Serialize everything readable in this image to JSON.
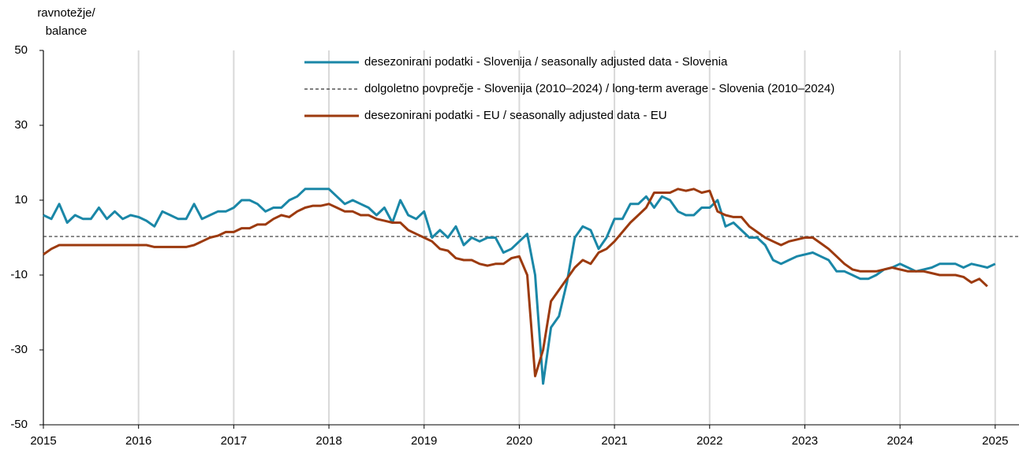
{
  "chart_data": {
    "type": "line",
    "ylabel": [
      "ravnotežje/",
      "balance"
    ],
    "x": [
      "2015-01",
      "2015-02",
      "2015-03",
      "2015-04",
      "2015-05",
      "2015-06",
      "2015-07",
      "2015-08",
      "2015-09",
      "2015-10",
      "2015-11",
      "2015-12",
      "2016-01",
      "2016-02",
      "2016-03",
      "2016-04",
      "2016-05",
      "2016-06",
      "2016-07",
      "2016-08",
      "2016-09",
      "2016-10",
      "2016-11",
      "2016-12",
      "2017-01",
      "2017-02",
      "2017-03",
      "2017-04",
      "2017-05",
      "2017-06",
      "2017-07",
      "2017-08",
      "2017-09",
      "2017-10",
      "2017-11",
      "2017-12",
      "2018-01",
      "2018-02",
      "2018-03",
      "2018-04",
      "2018-05",
      "2018-06",
      "2018-07",
      "2018-08",
      "2018-09",
      "2018-10",
      "2018-11",
      "2018-12",
      "2019-01",
      "2019-02",
      "2019-03",
      "2019-04",
      "2019-05",
      "2019-06",
      "2019-07",
      "2019-08",
      "2019-09",
      "2019-10",
      "2019-11",
      "2019-12",
      "2020-01",
      "2020-02",
      "2020-03",
      "2020-04",
      "2020-05",
      "2020-06",
      "2020-07",
      "2020-08",
      "2020-09",
      "2020-10",
      "2020-11",
      "2020-12",
      "2021-01",
      "2021-02",
      "2021-03",
      "2021-04",
      "2021-05",
      "2021-06",
      "2021-07",
      "2021-08",
      "2021-09",
      "2021-10",
      "2021-11",
      "2021-12",
      "2022-01",
      "2022-02",
      "2022-03",
      "2022-04",
      "2022-05",
      "2022-06",
      "2022-07",
      "2022-08",
      "2022-09",
      "2022-10",
      "2022-11",
      "2022-12",
      "2023-01",
      "2023-02",
      "2023-03",
      "2023-04",
      "2023-05",
      "2023-06",
      "2023-07",
      "2023-08",
      "2023-09",
      "2023-10",
      "2023-11",
      "2023-12",
      "2024-01",
      "2024-02",
      "2024-03",
      "2024-04",
      "2024-05",
      "2024-06",
      "2024-07",
      "2024-08",
      "2024-09",
      "2024-10",
      "2024-11",
      "2024-12",
      "2025-01"
    ],
    "series": [
      {
        "name": "desezonirani podatki - Slovenija / seasonally adjusted data - Slovenia",
        "color": "#1a87a7",
        "values": [
          6,
          5,
          9,
          4,
          6,
          5,
          5,
          8,
          5,
          7,
          5,
          6,
          5.5,
          4.5,
          3,
          7,
          6,
          5,
          5,
          9,
          5,
          6,
          7,
          7,
          8,
          10,
          10,
          9,
          7,
          8,
          8,
          10,
          11,
          13,
          13,
          13,
          13,
          11,
          9,
          10,
          9,
          8,
          6,
          8,
          4,
          10,
          6,
          5,
          7,
          0,
          2,
          0,
          3,
          -2,
          0,
          -1,
          0,
          0,
          -4,
          -3,
          -1,
          1,
          -10,
          -39,
          -24,
          -21,
          -12,
          0,
          3,
          2,
          -3,
          0,
          5,
          5,
          9,
          9,
          11,
          8,
          11,
          10,
          7,
          6,
          6,
          8,
          8,
          10,
          3,
          4,
          2,
          0,
          0,
          -2,
          -6,
          -7,
          -6,
          -5,
          -4.5,
          -4,
          -5,
          -6,
          -9,
          -9,
          -10,
          -11,
          -11,
          -10,
          -8.5,
          -8,
          -7,
          -8,
          -9,
          -8.5,
          -8,
          -7,
          -7,
          -7,
          -8,
          -7,
          -7.5,
          -8,
          -7
        ]
      },
      {
        "name": "desezonirani podatki - EU / seasonally adjusted data - EU",
        "color": "#9c3a0e",
        "values": [
          -4.5,
          -3,
          -2,
          -2,
          -2,
          -2,
          -2,
          -2,
          -2,
          -2,
          -2,
          -2,
          -2,
          -2,
          -2.5,
          -2.5,
          -2.5,
          -2.5,
          -2.5,
          -2,
          -1,
          0,
          0.5,
          1.5,
          1.5,
          2.5,
          2.5,
          3.5,
          3.5,
          5,
          6,
          5.5,
          7,
          8,
          8.5,
          8.5,
          9,
          8,
          7,
          7,
          6,
          6,
          5,
          4.5,
          4,
          4,
          2,
          1,
          0,
          -1,
          -3,
          -3.5,
          -5.5,
          -6,
          -6,
          -7,
          -7.5,
          -7,
          -7,
          -5.5,
          -5,
          -10,
          -37,
          -30,
          -17,
          -14,
          -11,
          -8,
          -6,
          -7,
          -4,
          -3,
          -1,
          1.5,
          4,
          6,
          8,
          12,
          12,
          12,
          13,
          12.5,
          13,
          12,
          12.5,
          7,
          6,
          5.5,
          5.5,
          3,
          1.5,
          0,
          -1,
          -2,
          -1,
          -0.5,
          0,
          0,
          -1.5,
          -3,
          -5,
          -7,
          -8.5,
          -9,
          -9,
          -9,
          -8.5,
          -8,
          -8.5,
          -9,
          -9,
          -9,
          -9.5,
          -10,
          -10,
          -10,
          -10.5,
          -12,
          -11,
          -13,
          null
        ]
      }
    ],
    "reference_lines": [
      {
        "name": "dolgoletno povprečje - Slovenija (2010–2024) / long-term average - Slovenia (2010–2024)",
        "value": 0.3,
        "color": "#333333",
        "dashed": true
      }
    ],
    "xlim": [
      "2015-01",
      "2025-04"
    ],
    "xticks": [
      {
        "value": "2015-01",
        "label": "2015"
      },
      {
        "value": "2016-01",
        "label": "2016"
      },
      {
        "value": "2017-01",
        "label": "2017"
      },
      {
        "value": "2018-01",
        "label": "2018"
      },
      {
        "value": "2019-01",
        "label": "2019"
      },
      {
        "value": "2020-01",
        "label": "2020"
      },
      {
        "value": "2021-01",
        "label": "2021"
      },
      {
        "value": "2022-01",
        "label": "2022"
      },
      {
        "value": "2023-01",
        "label": "2023"
      },
      {
        "value": "2024-01",
        "label": "2024"
      },
      {
        "value": "2025-01",
        "label": "2025"
      }
    ],
    "ylim": [
      -50,
      50
    ],
    "yticks": [
      -50,
      -30,
      -10,
      10,
      30,
      50
    ],
    "grid": "x"
  }
}
